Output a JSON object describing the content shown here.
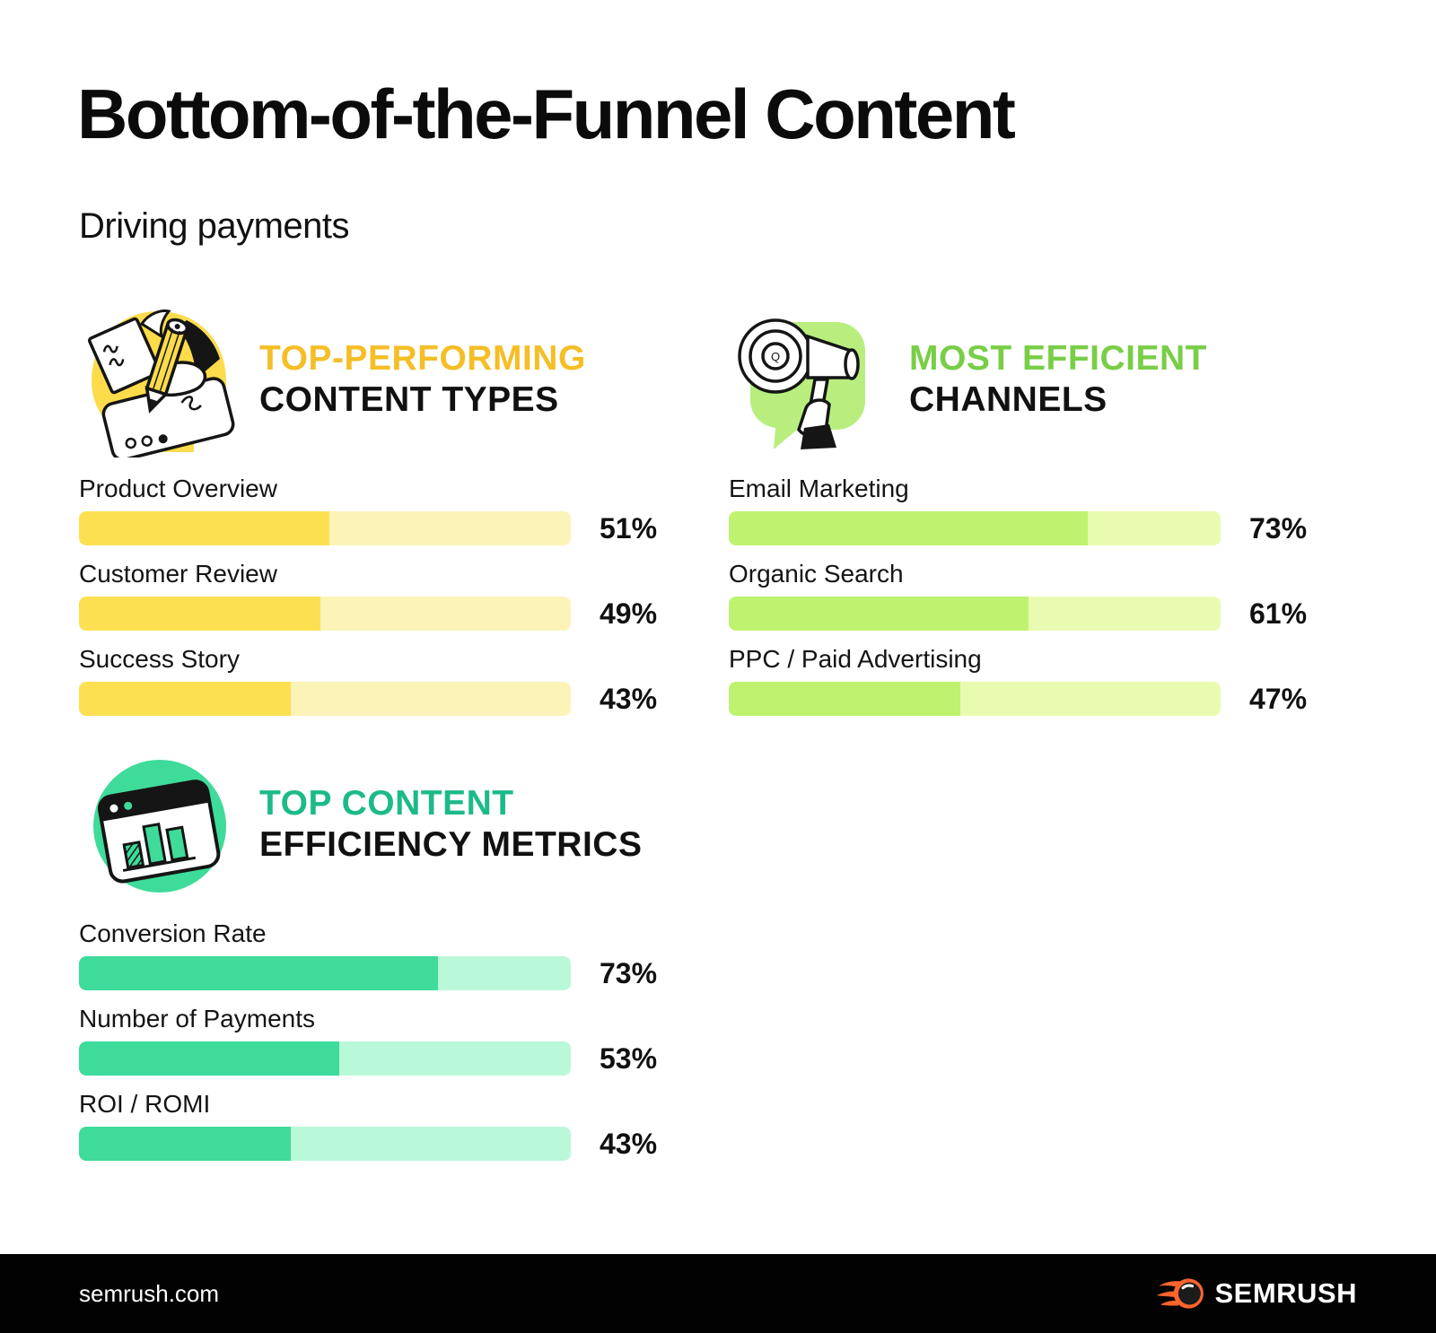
{
  "header": {
    "title": "Bottom-of-the-Funnel Content",
    "subtitle": "Driving payments"
  },
  "chart_data": [
    {
      "type": "bar",
      "heading_accent": "TOP-PERFORMING",
      "heading_rest": "CONTENT TYPES",
      "icon": "pencil-writing-icon",
      "accent_color": "#F5BE26",
      "bar_fill_color": "#FCE052",
      "bar_track_color": "#FCF3B8",
      "unit": "%",
      "xlim": [
        0,
        100
      ],
      "categories": [
        "Product Overview",
        "Customer Review",
        "Success Story"
      ],
      "values": [
        51,
        49,
        43
      ],
      "value_labels": [
        "51%",
        "49%",
        "43%"
      ]
    },
    {
      "type": "bar",
      "heading_accent": "MOST EFFICIENT",
      "heading_rest": "CHANNELS",
      "icon": "megaphone-icon",
      "accent_color": "#78CE46",
      "bar_fill_color": "#BFF36F",
      "bar_track_color": "#E9FBB0",
      "unit": "%",
      "xlim": [
        0,
        100
      ],
      "categories": [
        "Email Marketing",
        "Organic Search",
        "PPC / Paid Advertising"
      ],
      "values": [
        73,
        61,
        47
      ],
      "value_labels": [
        "73%",
        "61%",
        "47%"
      ]
    },
    {
      "type": "bar",
      "heading_accent": "TOP CONTENT",
      "heading_rest": "EFFICIENCY METRICS",
      "icon": "bar-chart-window-icon",
      "accent_color": "#1CBA8A",
      "bar_fill_color": "#3EDB9A",
      "bar_track_color": "#BAF8DA",
      "unit": "%",
      "xlim": [
        0,
        100
      ],
      "categories": [
        "Conversion Rate",
        "Number of Payments",
        "ROI / ROMI"
      ],
      "values": [
        73,
        53,
        43
      ],
      "value_labels": [
        "73%",
        "53%",
        "43%"
      ]
    }
  ],
  "footer": {
    "website": "semrush.com",
    "brand": "SEMRUSH",
    "brand_color": "#FF642D"
  }
}
